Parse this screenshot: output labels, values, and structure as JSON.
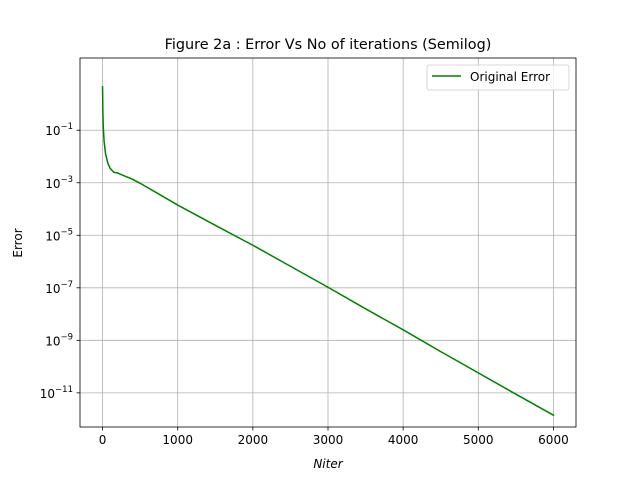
{
  "chart_data": {
    "type": "line",
    "title": "Figure 2a : Error Vs No of iterations (Semilog)",
    "xlabel": "Niter",
    "ylabel": "Error",
    "xlim": [
      -300,
      6300
    ],
    "ylim_log10": [
      -12.3,
      1.75
    ],
    "yscale": "log",
    "grid": true,
    "legend": {
      "placement": "top-right",
      "entries": [
        "Original Error"
      ]
    },
    "x_ticks": [
      {
        "value": 0,
        "label": "0"
      },
      {
        "value": 1000,
        "label": "1000"
      },
      {
        "value": 2000,
        "label": "2000"
      },
      {
        "value": 3000,
        "label": "3000"
      },
      {
        "value": 4000,
        "label": "4000"
      },
      {
        "value": 5000,
        "label": "5000"
      },
      {
        "value": 6000,
        "label": "6000"
      }
    ],
    "y_ticks": [
      {
        "exp": -1,
        "base": "10",
        "sup": "−1"
      },
      {
        "exp": -3,
        "base": "10",
        "sup": "−3"
      },
      {
        "exp": -5,
        "base": "10",
        "sup": "−5"
      },
      {
        "exp": -7,
        "base": "10",
        "sup": "−7"
      },
      {
        "exp": -9,
        "base": "10",
        "sup": "−9"
      },
      {
        "exp": -11,
        "base": "10",
        "sup": "−11"
      }
    ],
    "series": [
      {
        "name": "Original Error",
        "color": "#008000",
        "x": [
          0,
          5,
          10,
          20,
          40,
          70,
          100,
          150,
          200,
          300,
          400,
          500,
          700,
          1000,
          1500,
          2000,
          2500,
          3000,
          3500,
          4000,
          4500,
          5000,
          5500,
          6000
        ],
        "y_log10": [
          0.65,
          -0.4,
          -0.9,
          -1.4,
          -1.9,
          -2.25,
          -2.45,
          -2.6,
          -2.63,
          -2.75,
          -2.87,
          -3.02,
          -3.35,
          -3.85,
          -4.62,
          -5.38,
          -6.18,
          -6.98,
          -7.8,
          -8.6,
          -9.43,
          -10.24,
          -11.05,
          -11.85
        ]
      }
    ]
  }
}
